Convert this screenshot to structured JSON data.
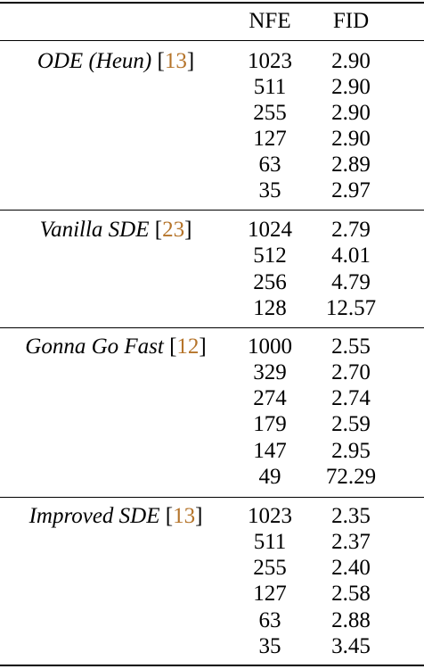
{
  "header": {
    "nfe_label": "NFE",
    "fid_label": "FID"
  },
  "cite_color": "#b5742a",
  "groups": [
    {
      "method": "ODE (Heun)",
      "cite": "13",
      "rows": [
        {
          "nfe": "1023",
          "fid": "2.90"
        },
        {
          "nfe": "511",
          "fid": "2.90"
        },
        {
          "nfe": "255",
          "fid": "2.90"
        },
        {
          "nfe": "127",
          "fid": "2.90"
        },
        {
          "nfe": "63",
          "fid": "2.89"
        },
        {
          "nfe": "35",
          "fid": "2.97"
        }
      ]
    },
    {
      "method": "Vanilla SDE",
      "cite": "23",
      "rows": [
        {
          "nfe": "1024",
          "fid": "2.79"
        },
        {
          "nfe": "512",
          "fid": "4.01"
        },
        {
          "nfe": "256",
          "fid": "4.79"
        },
        {
          "nfe": "128",
          "fid": "12.57"
        }
      ]
    },
    {
      "method": "Gonna Go Fast",
      "cite": "12",
      "rows": [
        {
          "nfe": "1000",
          "fid": "2.55"
        },
        {
          "nfe": "329",
          "fid": "2.70"
        },
        {
          "nfe": "274",
          "fid": "2.74"
        },
        {
          "nfe": "179",
          "fid": "2.59"
        },
        {
          "nfe": "147",
          "fid": "2.95"
        },
        {
          "nfe": "49",
          "fid": "72.29"
        }
      ]
    },
    {
      "method": "Improved SDE",
      "cite": "13",
      "rows": [
        {
          "nfe": "1023",
          "fid": "2.35"
        },
        {
          "nfe": "511",
          "fid": "2.37"
        },
        {
          "nfe": "255",
          "fid": "2.40"
        },
        {
          "nfe": "127",
          "fid": "2.58"
        },
        {
          "nfe": "63",
          "fid": "2.88"
        },
        {
          "nfe": "35",
          "fid": "3.45"
        }
      ]
    }
  ]
}
